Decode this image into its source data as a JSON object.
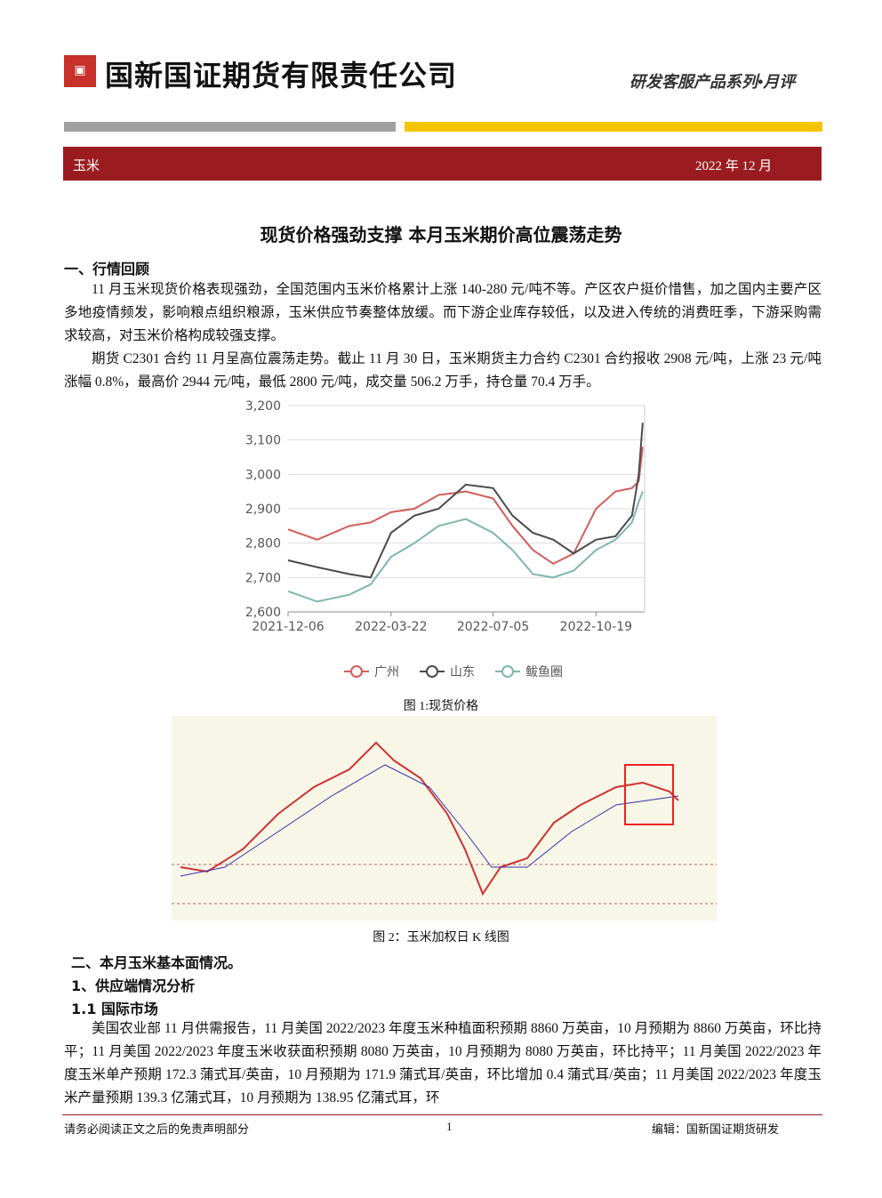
{
  "header": {
    "company": "国新国证期货有限责任公司",
    "series": "研发客服产品系列•月评"
  },
  "band": {
    "left": "玉米",
    "right": "2022 年 12 月"
  },
  "title": "现货价格强劲支撑 本月玉米期价高位震荡走势",
  "section1": {
    "heading": "一、行情回顾",
    "paragraphs": [
      "11 月玉米现货价格表现强劲，全国范围内玉米价格累计上涨 140-280 元/吨不等。产区农户挺价惜售，加之国内主要产区多地疫情频发，影响粮点组织粮源，玉米供应节奏整体放缓。而下游企业库存较低，以及进入传统的消费旺季，下游采购需求较高，对玉米价格构成较强支撑。",
      "期货 C2301 合约 11 月呈高位震荡走势。截止 11 月 30 日，玉米期货主力合约 C2301 合约报收 2908 元/吨，上涨 23 元/吨涨幅 0.8%，最高价 2944 元/吨，最低 2800 元/吨，成交量 506.2 万手，持仓量 70.4 万手。"
    ]
  },
  "chart_data": {
    "type": "line",
    "x": [
      "2021-12-06",
      "2022-01-05",
      "2022-02-07",
      "2022-03-01",
      "2022-03-22",
      "2022-04-15",
      "2022-05-10",
      "2022-06-07",
      "2022-07-05",
      "2022-07-25",
      "2022-08-15",
      "2022-09-05",
      "2022-09-26",
      "2022-10-19",
      "2022-11-08",
      "2022-11-25",
      "2022-12-02",
      "2022-12-06"
    ],
    "xlim": [
      "2021-12-06",
      "2022-12-08"
    ],
    "xticks": [
      "2021-12-06",
      "2022-03-22",
      "2022-07-05",
      "2022-10-19"
    ],
    "ylim": [
      2600,
      3200
    ],
    "yticks": [
      {
        "value": 2600,
        "label": "2,600"
      },
      {
        "value": 2700,
        "label": "2,700"
      },
      {
        "value": 2800,
        "label": "2,800"
      },
      {
        "value": 2900,
        "label": "2,900"
      },
      {
        "value": 3000,
        "label": "3,000"
      },
      {
        "value": 3100,
        "label": "3,100"
      },
      {
        "value": 3200,
        "label": "3,200"
      }
    ],
    "grid": true,
    "series": [
      {
        "name": "广州",
        "color": "#d25c5c",
        "values": [
          2840,
          2810,
          2850,
          2860,
          2890,
          2900,
          2940,
          2950,
          2930,
          2850,
          2780,
          2740,
          2770,
          2900,
          2950,
          2960,
          2980,
          3080
        ]
      },
      {
        "name": "山东",
        "color": "#4a4a4a",
        "values": [
          2750,
          2730,
          2710,
          2700,
          2830,
          2880,
          2900,
          2970,
          2960,
          2880,
          2830,
          2810,
          2770,
          2810,
          2820,
          2880,
          3000,
          3150
        ]
      },
      {
        "name": "鲅鱼圈",
        "color": "#7fb5ae",
        "values": [
          2660,
          2630,
          2650,
          2680,
          2760,
          2800,
          2850,
          2870,
          2830,
          2780,
          2710,
          2700,
          2720,
          2780,
          2810,
          2860,
          2920,
          2950
        ]
      }
    ]
  },
  "figure1_caption": "图 1:现货价格",
  "figure2_caption": "图 2：玉米加权日 K 线图",
  "section2": {
    "heading": "二、本月玉米基本面情况。",
    "sub1": "1、供应端情况分析",
    "sub11": "1.1 国际市场",
    "paragraph": "美国农业部 11 月供需报告，11 月美国 2022/2023 年度玉米种植面积预期 8860 万英亩，10 月预期为 8860 万英亩，环比持平；11 月美国 2022/2023 年度玉米收获面积预期 8080 万英亩，10 月预期为 8080 万英亩，环比持平；11 月美国 2022/2023 年度玉米单产预期 172.3 蒲式耳/英亩，10 月预期为 171.9 蒲式耳/英亩，环比增加 0.4 蒲式耳/英亩；11 月美国 2022/2023 年度玉米产量预期 139.3 亿蒲式耳，10 月预期为 138.95 亿蒲式耳，环"
  },
  "footer": {
    "left": "请务必阅读正文之后的免责声明部分",
    "page": "1",
    "right": "编辑：国新国证期货研发"
  }
}
